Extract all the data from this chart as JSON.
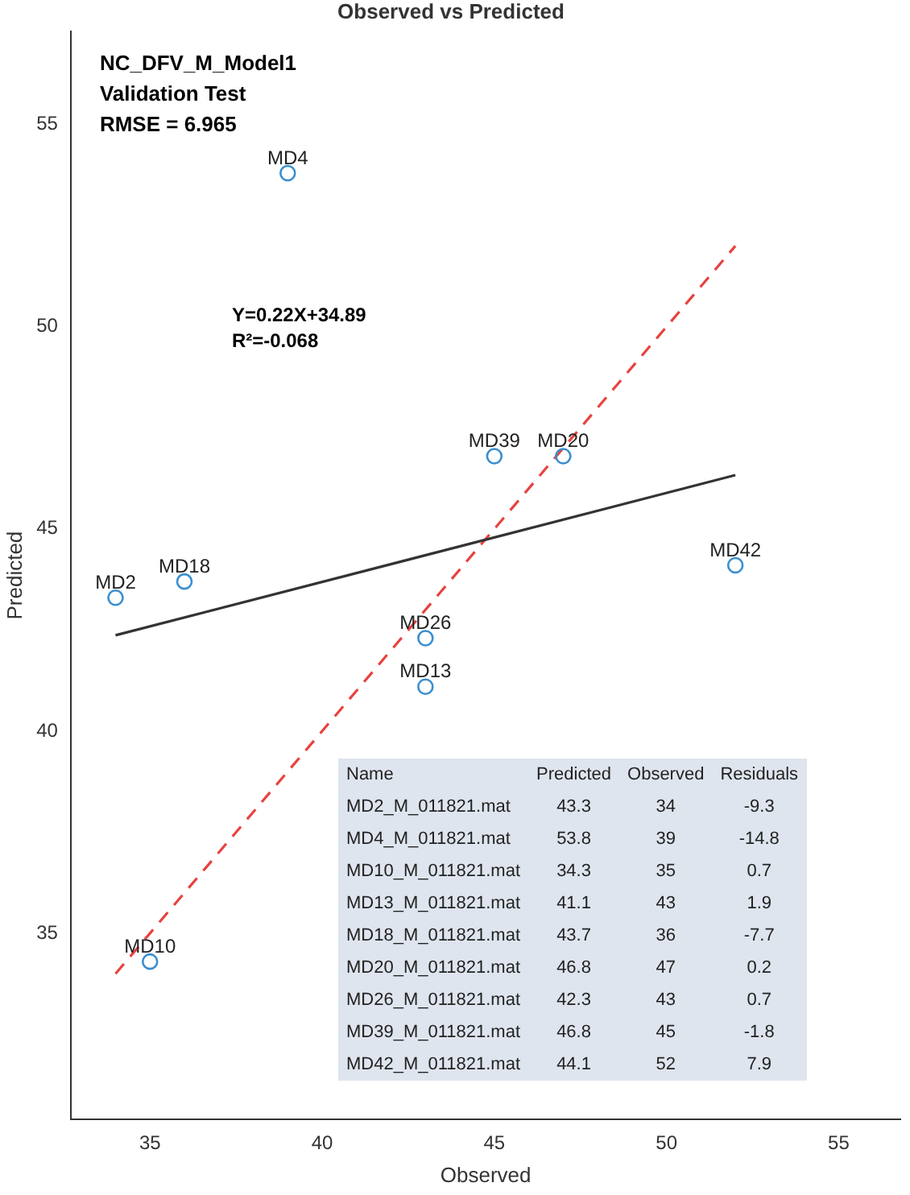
{
  "chart_data": {
    "type": "scatter",
    "title": "Observed vs Predicted",
    "xlabel": "Observed",
    "ylabel": "Predicted",
    "xlim": [
      32.7,
      56.8
    ],
    "ylim": [
      30.4,
      57.3
    ],
    "xticks": [
      35,
      40,
      45,
      50,
      55
    ],
    "yticks": [
      35,
      40,
      45,
      50,
      55
    ],
    "grid": false,
    "legend": false,
    "series": [
      {
        "type": "scatter",
        "color": "#3a8fd0",
        "marker": "circle",
        "x": [
          34,
          39,
          35,
          43,
          36,
          47,
          43,
          45,
          52
        ],
        "values": [
          43.3,
          53.8,
          34.3,
          41.1,
          43.7,
          46.8,
          42.3,
          46.8,
          44.1
        ],
        "value_labels": [
          "MD2",
          "MD4",
          "MD10",
          "MD13",
          "MD18",
          "MD20",
          "MD26",
          "MD39",
          "MD42"
        ]
      },
      {
        "type": "line",
        "color": "#333333",
        "line_style": "solid",
        "marker": "none",
        "x": [
          34,
          52
        ],
        "values": [
          42.37,
          46.33
        ]
      },
      {
        "type": "line",
        "color": "#e8423f",
        "line_style": "dashed",
        "marker": "none",
        "x": [
          34,
          52
        ],
        "values": [
          34,
          52
        ]
      }
    ],
    "annotations": [
      "NC_DFV_M_Model1",
      "Validation Test",
      "RMSE = 6.965",
      "Y=0.22X+34.89",
      "R²=-0.068",
      "Name",
      "Predicted",
      "Observed",
      "Residuals",
      "MD2_M_011821.mat",
      "43.3",
      "34",
      "-9.3",
      "MD4_M_011821.mat",
      "53.8",
      "39",
      "-14.8",
      "MD10_M_011821.mat",
      "34.3",
      "35",
      "0.7",
      "MD13_M_011821.mat",
      "41.1",
      "43",
      "1.9",
      "MD18_M_011821.mat",
      "43.7",
      "36",
      "-7.7",
      "MD20_M_011821.mat",
      "46.8",
      "47",
      "0.2",
      "MD26_M_011821.mat",
      "42.3",
      "43",
      "0.7",
      "MD39_M_011821.mat",
      "46.8",
      "45",
      "-1.8",
      "MD42_M_011821.mat",
      "44.1",
      "52",
      "7.9"
    ]
  }
}
